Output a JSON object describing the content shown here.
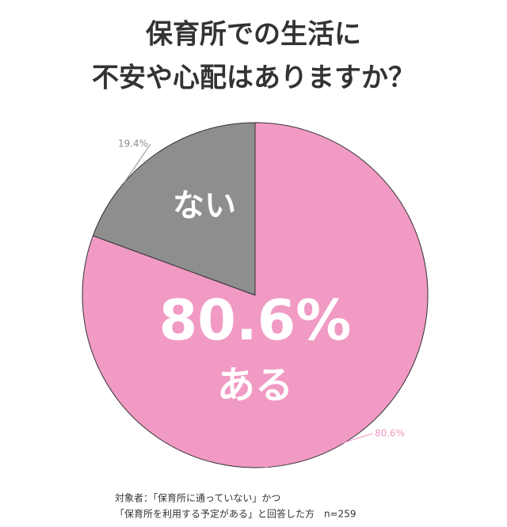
{
  "chart_data": {
    "type": "pie",
    "title": [
      "保育所での生活に",
      "不安や心配はありますか？"
    ],
    "categories": [
      "ある",
      "ない"
    ],
    "values": [
      80.6,
      19.4
    ],
    "value_labels": [
      "80.6%",
      "19.4%"
    ],
    "colors": [
      "#f09ac4",
      "#8e8e8e"
    ],
    "note": [
      "対象者：「保育所に通っていない」かつ",
      "「保育所を利用する予定がある」と回答した方　n=259"
    ]
  }
}
